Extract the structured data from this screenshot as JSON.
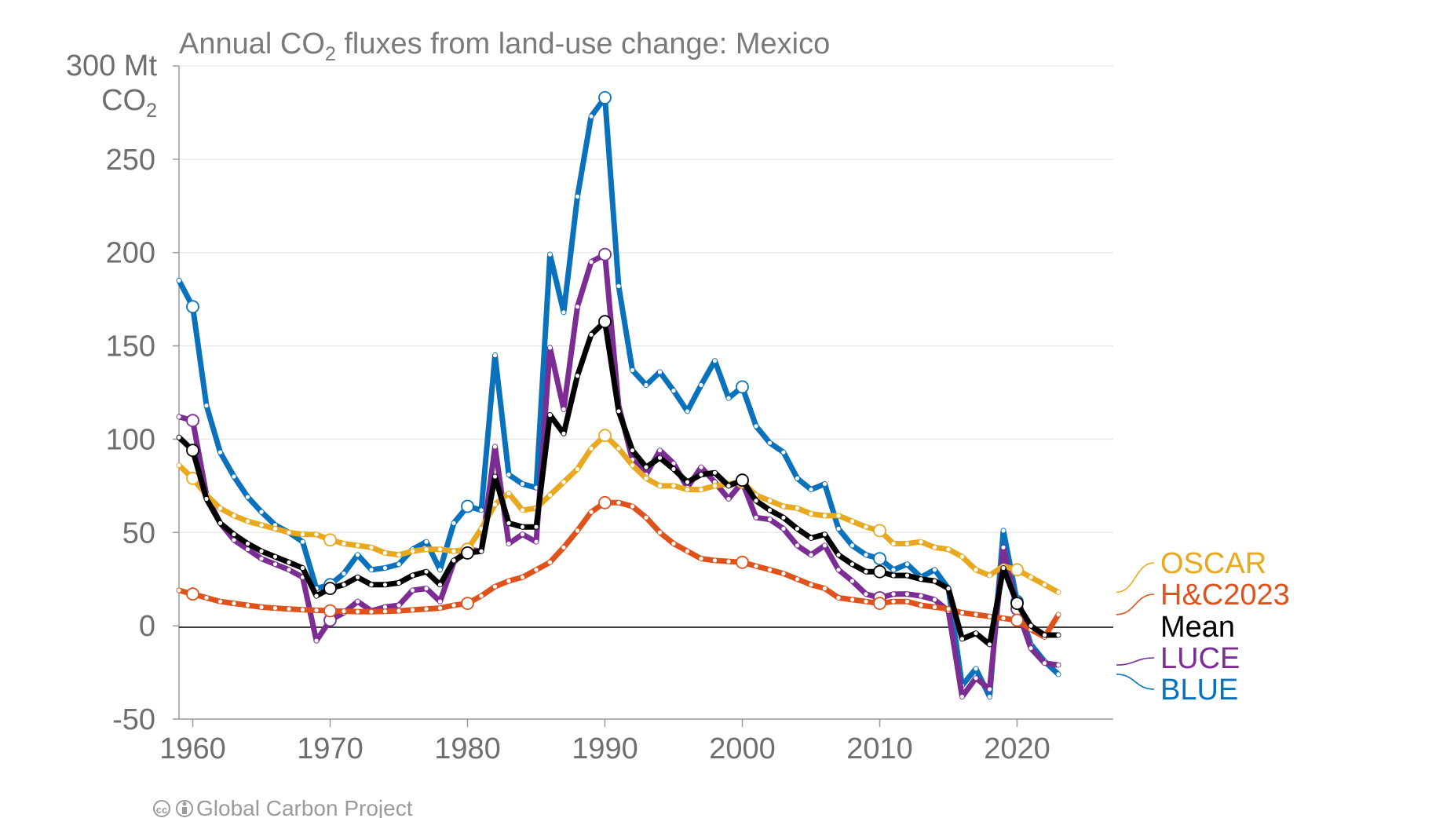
{
  "chart_data": {
    "type": "line",
    "title": "Annual CO",
    "title_sub": "2",
    "title_rest": " fluxes from land-use change: Mexico",
    "ylabel_line1": "300 Mt",
    "ylabel_line2": "CO",
    "ylabel_sub": "2",
    "xlim": [
      1959,
      2027
    ],
    "ylim": [
      -50,
      300
    ],
    "yticks": [
      -50,
      0,
      50,
      100,
      150,
      200,
      250
    ],
    "xticks": [
      1960,
      1970,
      1980,
      1990,
      2000,
      2010,
      2020
    ],
    "grid": true,
    "legend_placement": "right",
    "x": [
      1959,
      1960,
      1961,
      1962,
      1963,
      1964,
      1965,
      1966,
      1967,
      1968,
      1969,
      1970,
      1971,
      1972,
      1973,
      1974,
      1975,
      1976,
      1977,
      1978,
      1979,
      1980,
      1981,
      1982,
      1983,
      1984,
      1985,
      1986,
      1987,
      1988,
      1989,
      1990,
      1991,
      1992,
      1993,
      1994,
      1995,
      1996,
      1997,
      1998,
      1999,
      2000,
      2001,
      2002,
      2003,
      2004,
      2005,
      2006,
      2007,
      2008,
      2009,
      2010,
      2011,
      2012,
      2013,
      2014,
      2015,
      2016,
      2017,
      2018,
      2019,
      2020,
      2021,
      2022,
      2023
    ],
    "series": [
      {
        "name": "BLUE",
        "color": "#0a72bd",
        "values": [
          185,
          171,
          118,
          93,
          80,
          69,
          61,
          54,
          50,
          45,
          20,
          22,
          28,
          38,
          30,
          31,
          33,
          41,
          45,
          30,
          55,
          64,
          62,
          145,
          81,
          76,
          74,
          199,
          168,
          230,
          273,
          283,
          182,
          137,
          129,
          136,
          126,
          115,
          129,
          142,
          122,
          128,
          107,
          98,
          93,
          79,
          73,
          76,
          52,
          43,
          38,
          36,
          30,
          33,
          26,
          30,
          20,
          -32,
          -23,
          -38,
          51,
          13,
          -10,
          -19,
          -26
        ]
      },
      {
        "name": "LUCE",
        "color": "#7b2d94",
        "values": [
          112,
          110,
          70,
          55,
          46,
          41,
          36,
          33,
          30,
          26,
          -8,
          3,
          7,
          13,
          8,
          10,
          11,
          19,
          20,
          13,
          34,
          41,
          40,
          96,
          44,
          49,
          45,
          149,
          116,
          171,
          195,
          199,
          118,
          89,
          81,
          94,
          87,
          74,
          85,
          77,
          68,
          77,
          58,
          57,
          52,
          43,
          38,
          43,
          30,
          24,
          17,
          15,
          17,
          17,
          16,
          14,
          8,
          -38,
          -28,
          -34,
          42,
          9,
          -12,
          -20,
          -21
        ]
      },
      {
        "name": "Mean",
        "color": "#000000",
        "values": [
          101,
          94,
          68,
          55,
          49,
          44,
          40,
          37,
          34,
          31,
          16,
          20,
          22,
          26,
          22,
          22,
          23,
          27,
          29,
          22,
          35,
          39,
          40,
          80,
          55,
          53,
          53,
          113,
          103,
          134,
          156,
          163,
          115,
          94,
          85,
          90,
          84,
          77,
          81,
          82,
          75,
          78,
          67,
          62,
          58,
          52,
          47,
          49,
          38,
          33,
          29,
          29,
          27,
          27,
          25,
          24,
          20,
          -7,
          -4,
          -10,
          31,
          12,
          0,
          -5,
          -5
        ]
      },
      {
        "name": "H&C2023",
        "color": "#e0521b",
        "values": [
          19,
          17,
          15,
          13,
          12,
          11,
          10,
          9.5,
          9,
          8.6,
          8.3,
          8,
          7.8,
          7.6,
          7.5,
          7.7,
          8,
          8.5,
          9,
          9.5,
          11,
          12,
          16,
          21,
          24,
          26,
          30,
          34,
          42,
          51,
          61,
          66,
          66,
          64,
          58,
          50,
          44,
          40,
          36,
          35,
          34.5,
          34,
          32,
          30,
          28,
          25,
          22,
          20,
          15,
          14,
          13,
          12,
          13,
          13,
          11,
          10,
          9,
          7,
          6,
          5,
          4,
          3,
          -2,
          -6,
          6
        ]
      },
      {
        "name": "OSCAR",
        "color": "#e8a921",
        "values": [
          86,
          79,
          70,
          63,
          59,
          56,
          54,
          52,
          50,
          49,
          49,
          46,
          44,
          43,
          42,
          39,
          38,
          40,
          41,
          41,
          40,
          41,
          52,
          65,
          71,
          62,
          63,
          70,
          77,
          84,
          95,
          102,
          95,
          86,
          79,
          75,
          75,
          73,
          73,
          75,
          76,
          77,
          70,
          67,
          64,
          63,
          60,
          59,
          59,
          56,
          53,
          51,
          44,
          44,
          45,
          42,
          41,
          37,
          30,
          27,
          32,
          30,
          26,
          22,
          18
        ]
      }
    ]
  },
  "credit": "Global Carbon Project",
  "credit_icons": "cc-by-icons"
}
